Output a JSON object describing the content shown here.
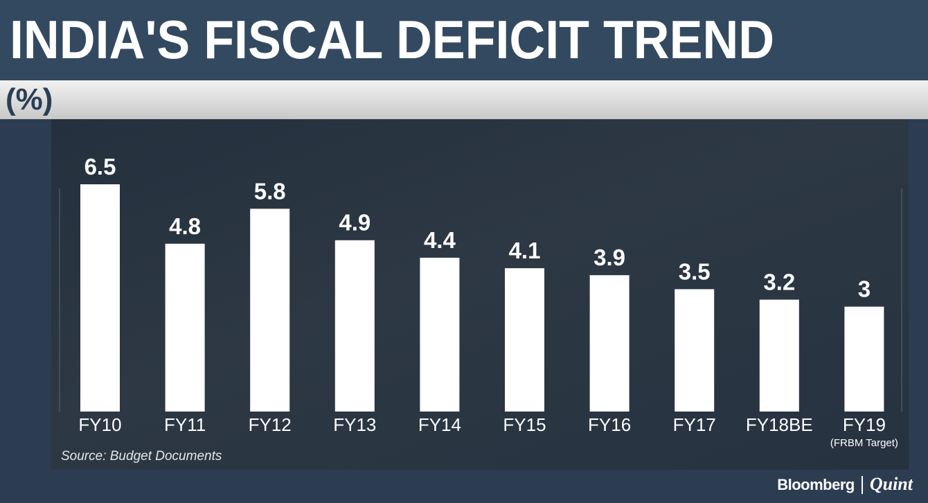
{
  "header": {
    "title": "INDIA'S FISCAL DEFICIT TREND",
    "unit": "(%)"
  },
  "footer": {
    "source": "Source: Budget Documents",
    "brand_primary": "Bloomberg",
    "brand_secondary": "Quint"
  },
  "colors": {
    "bar": "#ffffff",
    "text": "#ffffff",
    "header_bg": "#334960",
    "panel_bg": "#2a3542"
  },
  "chart_data": {
    "type": "bar",
    "title": "INDIA'S FISCAL DEFICIT TREND",
    "ylabel": "(%)",
    "categories": [
      "FY10",
      "FY11",
      "FY12",
      "FY13",
      "FY14",
      "FY15",
      "FY16",
      "FY17",
      "FY18BE",
      "FY19"
    ],
    "category_notes": [
      "",
      "",
      "",
      "",
      "",
      "",
      "",
      "",
      "",
      "(FRBM Target)"
    ],
    "values": [
      6.5,
      4.8,
      5.8,
      4.9,
      4.4,
      4.1,
      3.9,
      3.5,
      3.2,
      3
    ],
    "value_labels": [
      "6.5",
      "4.8",
      "5.8",
      "4.9",
      "4.4",
      "4.1",
      "3.9",
      "3.5",
      "3.2",
      "3"
    ],
    "ylim": [
      0,
      6.5
    ],
    "grid": false,
    "legend": "none"
  }
}
